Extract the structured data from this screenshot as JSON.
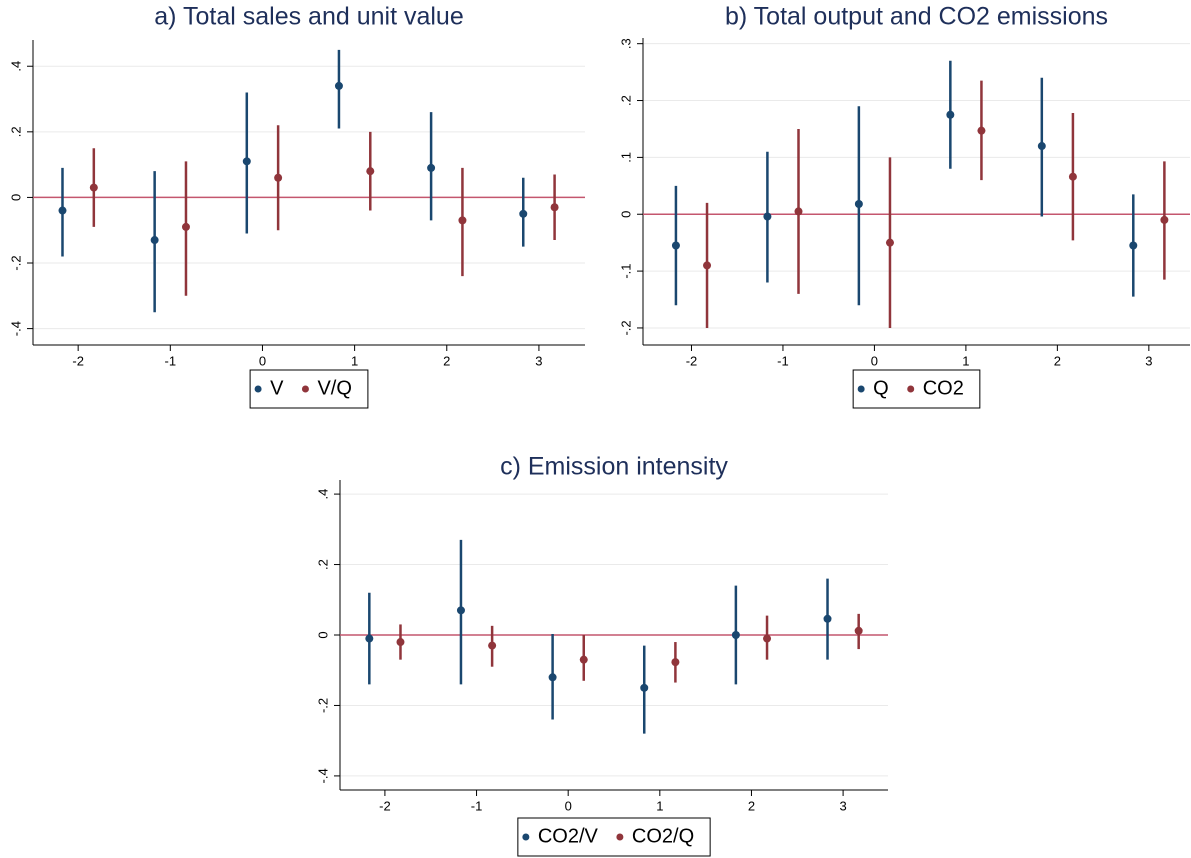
{
  "chart_data": [
    {
      "type": "errorbar",
      "title": "a) Total sales and unit value",
      "xlim": [
        -2.49,
        3.5
      ],
      "xticks": [
        -2,
        -1,
        0,
        1,
        2,
        3
      ],
      "ylim": [
        -0.45,
        0.48
      ],
      "yticks": [
        {
          "value": -0.4,
          "label": "-.4"
        },
        {
          "value": -0.2,
          "label": "-.2"
        },
        0,
        {
          "value": 0.2,
          "label": ".2"
        },
        {
          "value": 0.4,
          "label": ".4"
        }
      ],
      "grid": true,
      "refline": 0,
      "refline_color": "#c4566e",
      "series": [
        {
          "name": "V",
          "color": "#1a476f",
          "x": [
            -2.17,
            -1.17,
            -0.17,
            0.83,
            1.83,
            2.83
          ],
          "values": [
            -0.04,
            -0.13,
            0.11,
            0.34,
            0.09,
            -0.05
          ],
          "lower": [
            -0.18,
            -0.35,
            -0.11,
            0.21,
            -0.07,
            -0.15
          ],
          "upper": [
            0.09,
            0.08,
            0.32,
            0.45,
            0.26,
            0.06
          ]
        },
        {
          "name": "V/Q",
          "color": "#90353b",
          "x": [
            -1.83,
            -0.83,
            0.17,
            1.17,
            2.17,
            3.17
          ],
          "values": [
            0.03,
            -0.09,
            0.06,
            0.08,
            -0.07,
            -0.03
          ],
          "lower": [
            -0.09,
            -0.3,
            -0.1,
            -0.04,
            -0.24,
            -0.13
          ],
          "upper": [
            0.15,
            0.11,
            0.22,
            0.2,
            0.09,
            0.07
          ]
        }
      ]
    },
    {
      "type": "errorbar",
      "title": "b) Total output and CO2 emissions",
      "xlim": [
        -2.53,
        3.45
      ],
      "xticks": [
        -2,
        -1,
        0,
        1,
        2,
        3
      ],
      "ylim": [
        -0.23,
        0.31
      ],
      "yticks": [
        {
          "value": -0.2,
          "label": "-.2"
        },
        {
          "value": -0.1,
          "label": "-.1"
        },
        0,
        {
          "value": 0.1,
          "label": ".1"
        },
        {
          "value": 0.2,
          "label": ".2"
        },
        {
          "value": 0.3,
          "label": ".3"
        }
      ],
      "grid": true,
      "refline": 0,
      "refline_color": "#c4566e",
      "series": [
        {
          "name": "Q",
          "color": "#1a476f",
          "x": [
            -2.17,
            -1.17,
            -0.17,
            0.83,
            1.83,
            2.83
          ],
          "values": [
            -0.055,
            -0.004,
            0.018,
            0.175,
            0.12,
            -0.055
          ],
          "lower": [
            -0.16,
            -0.12,
            -0.16,
            0.08,
            -0.004,
            -0.145
          ],
          "upper": [
            0.05,
            0.11,
            0.19,
            0.27,
            0.24,
            0.035
          ]
        },
        {
          "name": "CO2",
          "color": "#90353b",
          "x": [
            -1.83,
            -0.83,
            0.17,
            1.17,
            2.17,
            3.17
          ],
          "values": [
            -0.09,
            0.005,
            -0.05,
            0.147,
            0.066,
            -0.01
          ],
          "lower": [
            -0.2,
            -0.14,
            -0.2,
            0.06,
            -0.046,
            -0.115
          ],
          "upper": [
            0.02,
            0.15,
            0.1,
            0.235,
            0.178,
            0.093
          ]
        }
      ]
    },
    {
      "type": "errorbar",
      "title": "c) Emission intensity",
      "xlim": [
        -2.49,
        3.49
      ],
      "xticks": [
        -2,
        -1,
        0,
        1,
        2,
        3
      ],
      "ylim": [
        -0.44,
        0.44
      ],
      "yticks": [
        {
          "value": -0.4,
          "label": "-.4"
        },
        {
          "value": -0.2,
          "label": "-.2"
        },
        0,
        {
          "value": 0.2,
          "label": ".2"
        },
        {
          "value": 0.4,
          "label": ".4"
        }
      ],
      "grid": true,
      "refline": 0,
      "refline_color": "#c4566e",
      "series": [
        {
          "name": "CO2/V",
          "color": "#1a476f",
          "x": [
            -2.17,
            -1.17,
            -0.17,
            0.83,
            1.83,
            2.83
          ],
          "values": [
            -0.01,
            0.07,
            -0.12,
            -0.15,
            0.0,
            0.046
          ],
          "lower": [
            -0.14,
            -0.14,
            -0.24,
            -0.28,
            -0.14,
            -0.07
          ],
          "upper": [
            0.12,
            0.27,
            0.003,
            -0.03,
            0.14,
            0.16
          ]
        },
        {
          "name": "CO2/Q",
          "color": "#90353b",
          "x": [
            -1.83,
            -0.83,
            0.17,
            1.17,
            2.17,
            3.17
          ],
          "values": [
            -0.02,
            -0.03,
            -0.07,
            -0.077,
            -0.01,
            0.012
          ],
          "lower": [
            -0.07,
            -0.09,
            -0.13,
            -0.135,
            -0.07,
            -0.04
          ],
          "upper": [
            0.03,
            0.026,
            0.0,
            -0.02,
            0.055,
            0.06
          ]
        }
      ]
    }
  ]
}
